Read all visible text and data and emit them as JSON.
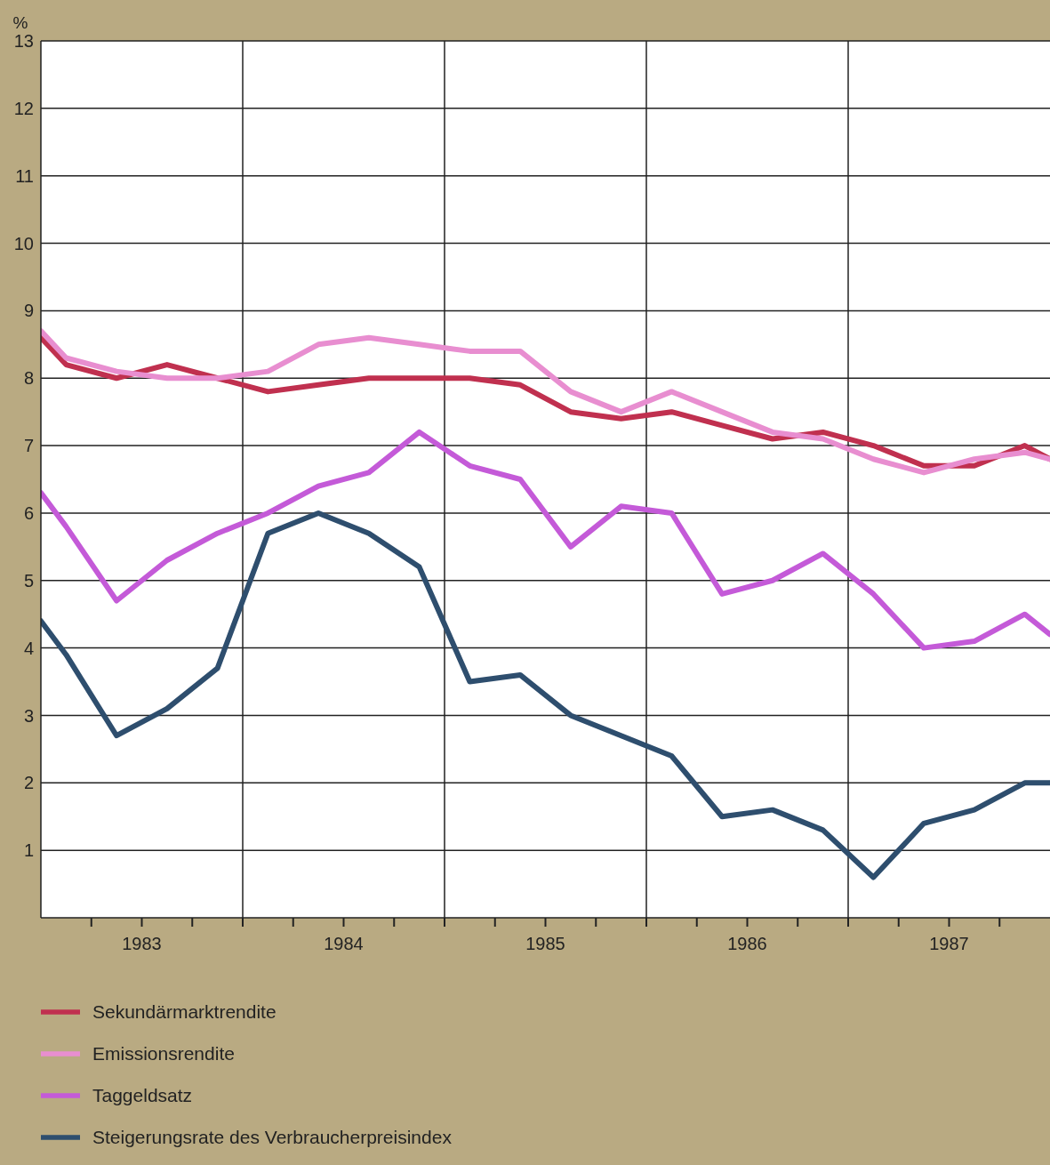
{
  "chart_data": {
    "type": "line",
    "ylabel": "%",
    "x": [
      1983,
      1983.125,
      1983.375,
      1983.625,
      1983.875,
      1984.125,
      1984.375,
      1984.625,
      1984.875,
      1985.125,
      1985.375,
      1985.625,
      1985.875,
      1986.125,
      1986.375,
      1986.625,
      1986.875,
      1987.125,
      1987.375,
      1987.625,
      1987.875,
      1988
    ],
    "series": [
      {
        "name": "Sekundärmarktrendite",
        "color": "#c0304f",
        "values": [
          8.6,
          8.2,
          8.0,
          8.2,
          8.0,
          7.8,
          7.9,
          8.0,
          8.0,
          8.0,
          7.9,
          7.5,
          7.4,
          7.5,
          7.3,
          7.1,
          7.2,
          7.0,
          6.7,
          6.7,
          7.0,
          6.8
        ]
      },
      {
        "name": "Emissionsrendite",
        "color": "#e88ed0",
        "values": [
          8.7,
          8.3,
          8.1,
          8.0,
          8.0,
          8.1,
          8.5,
          8.6,
          8.5,
          8.4,
          8.4,
          7.8,
          7.5,
          7.8,
          7.5,
          7.2,
          7.1,
          6.8,
          6.6,
          6.8,
          6.9,
          6.8
        ]
      },
      {
        "name": "Taggeldsatz",
        "color": "#c45ad8",
        "values": [
          6.3,
          5.8,
          4.7,
          5.3,
          5.7,
          6.0,
          6.4,
          6.6,
          7.2,
          6.7,
          6.5,
          5.5,
          6.1,
          6.0,
          4.8,
          5.0,
          5.4,
          4.8,
          4.0,
          4.1,
          4.5,
          4.2
        ]
      },
      {
        "name": "Steigerungsrate des Verbraucherpreisindex",
        "color": "#2e4e6e",
        "values": [
          4.4,
          3.9,
          2.7,
          3.1,
          3.7,
          5.7,
          6.0,
          5.7,
          5.2,
          3.5,
          3.6,
          3.0,
          2.7,
          2.4,
          1.5,
          1.6,
          1.3,
          0.6,
          1.4,
          1.6,
          2.0,
          2.0
        ]
      }
    ],
    "xlim": [
      1983,
      1988
    ],
    "xticks": [
      {
        "value": 1983.25,
        "label": null
      },
      {
        "value": 1983.5,
        "label": "1983"
      },
      {
        "value": 1983.75,
        "label": null
      },
      {
        "value": 1984,
        "label": null
      },
      {
        "value": 1984.25,
        "label": null
      },
      {
        "value": 1984.5,
        "label": "1984"
      },
      {
        "value": 1984.75,
        "label": null
      },
      {
        "value": 1985,
        "label": null
      },
      {
        "value": 1985.25,
        "label": null
      },
      {
        "value": 1985.5,
        "label": "1985"
      },
      {
        "value": 1985.75,
        "label": null
      },
      {
        "value": 1986,
        "label": null
      },
      {
        "value": 1986.25,
        "label": null
      },
      {
        "value": 1986.5,
        "label": "1986"
      },
      {
        "value": 1986.75,
        "label": null
      },
      {
        "value": 1987,
        "label": null
      },
      {
        "value": 1987.25,
        "label": null
      },
      {
        "value": 1987.5,
        "label": "1987"
      },
      {
        "value": 1987.75,
        "label": null
      }
    ],
    "ylim": [
      0,
      13
    ],
    "yticks": [
      1,
      2,
      3,
      4,
      5,
      6,
      7,
      8,
      9,
      10,
      11,
      12,
      13
    ],
    "grid": true,
    "legend": "bottom",
    "marker": "none",
    "line_style": "solid"
  }
}
